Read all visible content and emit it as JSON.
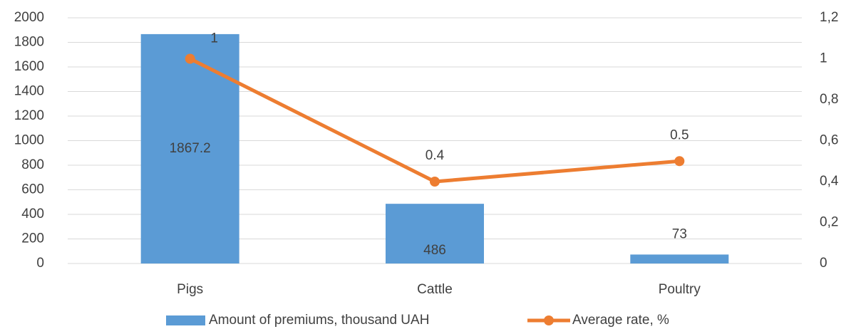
{
  "chart_data": {
    "type": "bar_line",
    "categories": [
      "Pigs",
      "Cattle",
      "Poultry"
    ],
    "series": [
      {
        "name": "Amount of premiums, thousand UAH",
        "type": "bar",
        "color": "#5b9bd5",
        "values": [
          1867.2,
          486,
          73
        ]
      },
      {
        "name": "Average rate, %",
        "type": "line",
        "color": "#ed7d31",
        "axis": "y2",
        "values": [
          1,
          0.4,
          0.5
        ]
      }
    ],
    "ylim": [
      0,
      2000
    ],
    "yticks": [
      0,
      200,
      400,
      600,
      800,
      1000,
      1200,
      1400,
      1600,
      1800,
      2000
    ],
    "y2lim": [
      0,
      1.2
    ],
    "y2ticks": [
      0,
      {
        "value": 0.2,
        "label": "0,2"
      },
      {
        "value": 0.4,
        "label": "0,4"
      },
      {
        "value": 0.6,
        "label": "0,6"
      },
      {
        "value": 0.8,
        "label": "0,8"
      },
      1,
      {
        "value": 1.2,
        "label": "1,2"
      }
    ],
    "grid": true,
    "legend": "bottom"
  }
}
